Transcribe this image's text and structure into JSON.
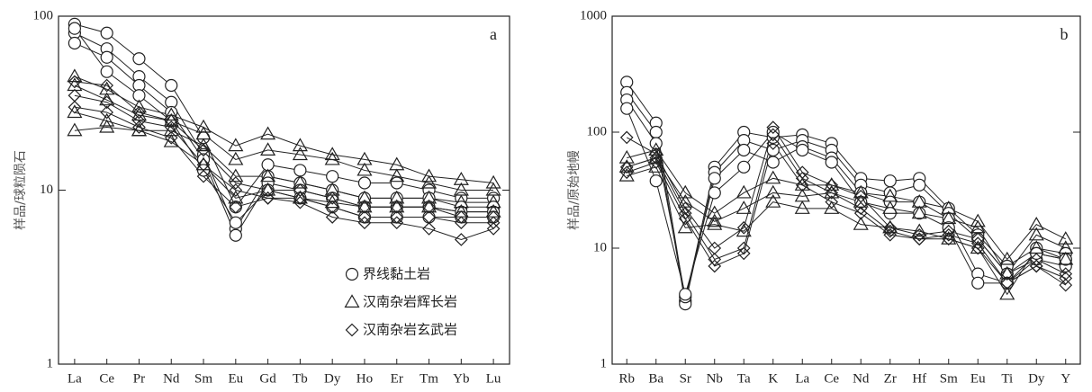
{
  "chart_data": [
    {
      "type": "spider",
      "panel_label": "a",
      "ylabel": "样品/球粒陨石",
      "log_scale": true,
      "ylim": [
        1,
        100
      ],
      "yticks": [
        1,
        10,
        100
      ],
      "categories": [
        "La",
        "Ce",
        "Pr",
        "Nd",
        "Sm",
        "Eu",
        "Gd",
        "Tb",
        "Dy",
        "Ho",
        "Er",
        "Tm",
        "Yb",
        "Lu"
      ],
      "legend": "lower right",
      "groups": [
        {
          "name": "界线黏土岩",
          "marker": "circle",
          "samples": [
            [
              90,
              80,
              57,
              40,
              20,
              8,
              14,
              13,
              12,
              11,
              11,
              10,
              9,
              9
            ],
            [
              80,
              65,
              45,
              32,
              16,
              6,
              12,
              11,
              10,
              9,
              9,
              9,
              8,
              8
            ],
            [
              70,
              58,
              40,
              28,
              15,
              5.5,
              11,
              10,
              9,
              8,
              8,
              8,
              7.5,
              7.5
            ],
            [
              85,
              48,
              35,
              25,
              13,
              6.5,
              10,
              9,
              8,
              7,
              7,
              7,
              7,
              7
            ]
          ]
        },
        {
          "name": "汉南杂岩辉长岩",
          "marker": "triangle",
          "samples": [
            [
              45,
              38,
              30,
              27,
              23,
              18,
              21,
              18,
              16,
              15,
              14,
              12,
              11.5,
              11
            ],
            [
              40,
              33,
              27,
              25,
              21,
              15,
              17,
              16,
              15,
              13,
              12,
              11,
              10,
              10
            ],
            [
              28,
              25,
              22,
              22,
              18,
              12,
              12,
              11,
              10,
              9,
              9,
              9,
              8.5,
              8.5
            ],
            [
              22,
              23,
              22,
              19,
              14,
              9,
              10,
              9,
              8.5,
              8,
              8,
              8,
              7.5,
              7.5
            ]
          ]
        },
        {
          "name": "汉南杂岩玄武岩",
          "marker": "diamond",
          "samples": [
            [
              42,
              40,
              28,
              25,
              17,
              11,
              10,
              10,
              9,
              8,
              8,
              8,
              7,
              7
            ],
            [
              35,
              32,
              25,
              23,
              14,
              10,
              9,
              9,
              8,
              7,
              7,
              7,
              6.5,
              6.5
            ],
            [
              30,
              28,
              23,
              20,
              12,
              8,
              9,
              8.5,
              7,
              6.5,
              6.5,
              6,
              5.2,
              6
            ]
          ]
        }
      ]
    },
    {
      "type": "spider",
      "panel_label": "b",
      "ylabel": "样品/原始地幔",
      "log_scale": true,
      "ylim": [
        1,
        1000
      ],
      "yticks": [
        1,
        10,
        100,
        1000
      ],
      "categories": [
        "Rb",
        "Ba",
        "Sr",
        "Nb",
        "Ta",
        "K",
        "La",
        "Ce",
        "Nd",
        "Zr",
        "Hf",
        "Sm",
        "Eu",
        "Ti",
        "Dy",
        "Y"
      ],
      "groups": [
        {
          "marker": "circle",
          "samples": [
            [
              270,
              120,
              3.5,
              50,
              100,
              90,
              95,
              80,
              40,
              38,
              40,
              22,
              13,
              7,
              10,
              9
            ],
            [
              220,
              100,
              3.3,
              45,
              85,
              70,
              85,
              70,
              35,
              30,
              35,
              20,
              12,
              6,
              9,
              8
            ],
            [
              190,
              80,
              3.8,
              40,
              70,
              55,
              75,
              60,
              30,
              25,
              25,
              18,
              6,
              5,
              8,
              7
            ],
            [
              160,
              38,
              4,
              30,
              50,
              100,
              70,
              55,
              25,
              20,
              20,
              15,
              5,
              5,
              9,
              8
            ]
          ]
        },
        {
          "marker": "triangle",
          "samples": [
            [
              60,
              70,
              30,
              20,
              30,
              40,
              35,
              35,
              30,
              28,
              25,
              22,
              17,
              8,
              16,
              12
            ],
            [
              50,
              60,
              25,
              17,
              22,
              30,
              28,
              30,
              25,
              22,
              20,
              18,
              15,
              6,
              13,
              10
            ],
            [
              42,
              50,
              15,
              16,
              14,
              25,
              22,
              22,
              16,
              15,
              14,
              12,
              10,
              4,
              10,
              8
            ]
          ]
        },
        {
          "marker": "diamond",
          "samples": [
            [
              90,
              65,
              22,
              10,
              15,
              110,
              45,
              35,
              28,
              15,
              13,
              14,
              12,
              6,
              8,
              6
            ],
            [
              50,
              60,
              20,
              8,
              10,
              95,
              40,
              30,
              22,
              14,
              12,
              13,
              11,
              5,
              7,
              5.5
            ],
            [
              45,
              55,
              18,
              7,
              9,
              80,
              35,
              25,
              20,
              13,
              12,
              12,
              10,
              5,
              7,
              4.8
            ]
          ]
        }
      ]
    }
  ]
}
